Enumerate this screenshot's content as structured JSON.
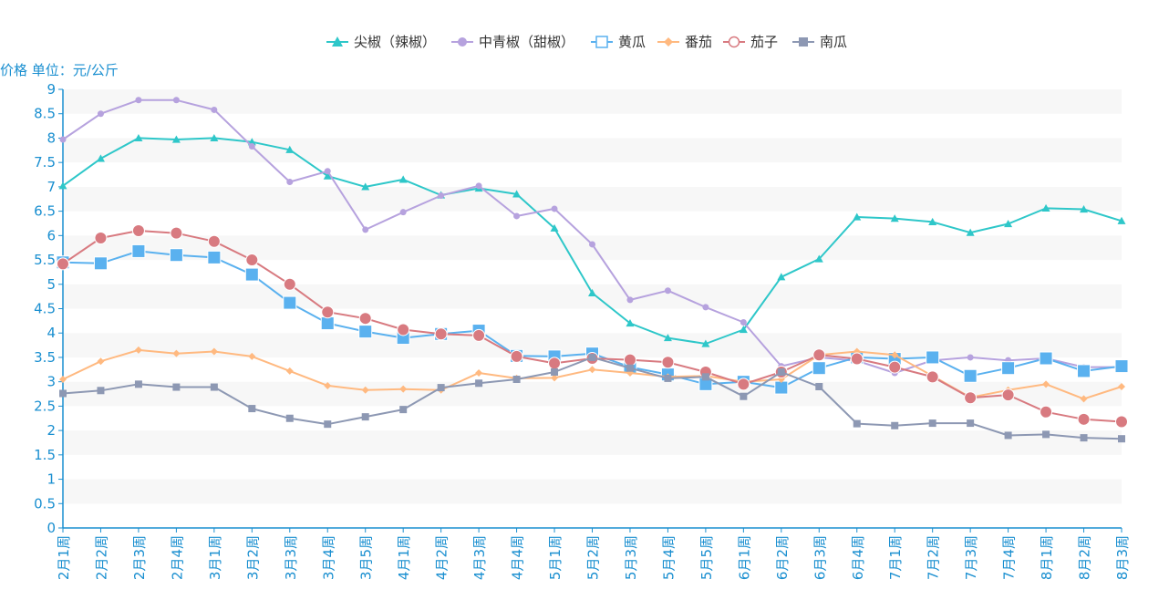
{
  "chart_data": {
    "type": "line",
    "ylabel": "价格 单位：元/公斤",
    "ylim": [
      0,
      9
    ],
    "yticks": [
      0,
      0.5,
      1,
      1.5,
      2,
      2.5,
      3,
      3.5,
      4,
      4.5,
      5,
      5.5,
      6,
      6.5,
      7,
      7.5,
      8,
      8.5,
      9
    ],
    "grid": "alternating horizontal bands",
    "legend_position": "top-center",
    "categories": [
      "2月1周",
      "2月2周",
      "2月3周",
      "2月4周",
      "3月1周",
      "3月2周",
      "3月3周",
      "3月4周",
      "3月5周",
      "4月1周",
      "4月2周",
      "4月3周",
      "4月4周",
      "5月1周",
      "5月2周",
      "5月3周",
      "5月4周",
      "5月5周",
      "6月1周",
      "6月2周",
      "6月3周",
      "6月4周",
      "7月1周",
      "7月2周",
      "7月3周",
      "7月4周",
      "8月1周",
      "8月2周",
      "8月3周"
    ],
    "series": [
      {
        "name": "尖椒（辣椒）",
        "color": "#2ec7c9",
        "marker": "triangle",
        "values": [
          7.02,
          7.58,
          8.0,
          7.97,
          8.0,
          7.92,
          7.76,
          7.22,
          7.0,
          7.15,
          6.83,
          6.97,
          6.85,
          6.15,
          4.82,
          4.2,
          3.9,
          3.78,
          4.07,
          5.15,
          5.52,
          6.38,
          6.35,
          6.28,
          6.06,
          6.24,
          6.56,
          6.54,
          6.3
        ]
      },
      {
        "name": "中青椒（甜椒）",
        "color": "#b6a2de",
        "marker": "circle",
        "values": [
          7.97,
          8.5,
          8.78,
          8.78,
          8.58,
          7.83,
          7.1,
          7.32,
          6.12,
          6.48,
          6.82,
          7.02,
          6.4,
          6.55,
          5.82,
          4.68,
          4.87,
          4.53,
          4.22,
          3.32,
          3.5,
          3.43,
          3.18,
          3.44,
          3.5,
          3.44,
          3.48,
          3.3,
          3.3
        ]
      },
      {
        "name": "黄瓜",
        "color": "#5ab1ef",
        "marker": "square-hollow",
        "values": [
          5.45,
          5.43,
          5.68,
          5.6,
          5.55,
          5.2,
          4.62,
          4.2,
          4.03,
          3.9,
          3.98,
          4.05,
          3.53,
          3.52,
          3.58,
          3.3,
          3.15,
          2.95,
          3.0,
          2.88,
          3.28,
          3.5,
          3.47,
          3.5,
          3.12,
          3.28,
          3.48,
          3.22,
          3.32
        ]
      },
      {
        "name": "番茄",
        "color": "#ffb980",
        "marker": "diamond",
        "values": [
          3.05,
          3.42,
          3.65,
          3.58,
          3.62,
          3.52,
          3.22,
          2.92,
          2.83,
          2.85,
          2.83,
          3.18,
          3.07,
          3.08,
          3.25,
          3.18,
          3.1,
          3.12,
          3.0,
          3.05,
          3.55,
          3.62,
          3.55,
          3.12,
          2.68,
          2.83,
          2.95,
          2.65,
          2.9
        ]
      },
      {
        "name": "茄子",
        "color": "#d87a80",
        "marker": "circle-hollow",
        "values": [
          5.42,
          5.95,
          6.1,
          6.05,
          5.88,
          5.5,
          5.0,
          4.43,
          4.3,
          4.07,
          3.98,
          3.95,
          3.52,
          3.38,
          3.48,
          3.45,
          3.4,
          3.2,
          2.95,
          3.2,
          3.55,
          3.47,
          3.3,
          3.1,
          2.67,
          2.73,
          2.38,
          2.23,
          2.18
        ]
      },
      {
        "name": "南瓜",
        "color": "#8d98b3",
        "marker": "square",
        "values": [
          2.76,
          2.82,
          2.95,
          2.89,
          2.89,
          2.45,
          2.25,
          2.13,
          2.28,
          2.43,
          2.88,
          2.97,
          3.05,
          3.2,
          3.5,
          3.28,
          3.07,
          3.1,
          2.7,
          3.2,
          2.9,
          2.14,
          2.1,
          2.15,
          2.15,
          1.9,
          1.92,
          1.85,
          1.83
        ]
      }
    ]
  }
}
